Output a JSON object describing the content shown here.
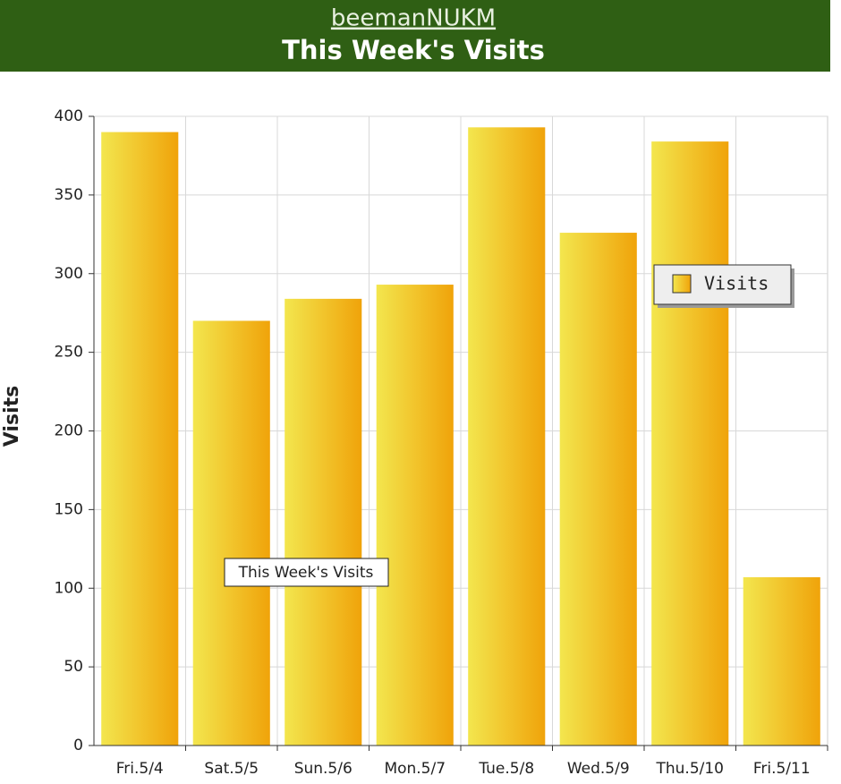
{
  "chart_data": {
    "type": "bar",
    "subtitle": "beemanNUKM",
    "title": "This Week's Visits",
    "y_label": "Visits",
    "categories": [
      "Fri.5/4",
      "Sat.5/5",
      "Sun.5/6",
      "Mon.5/7",
      "Tue.5/8",
      "Wed.5/9",
      "Thu.5/10",
      "Fri.5/11"
    ],
    "series": [
      {
        "name": "Visits",
        "color": "#f0a30a",
        "values": [
          390,
          270,
          284,
          293,
          393,
          326,
          384,
          107
        ]
      }
    ],
    "ylim": [
      0,
      400
    ],
    "yticks": [
      0,
      50,
      100,
      150,
      200,
      250,
      300,
      350,
      400
    ],
    "grid": true,
    "annotation": "This Week's Visits"
  }
}
